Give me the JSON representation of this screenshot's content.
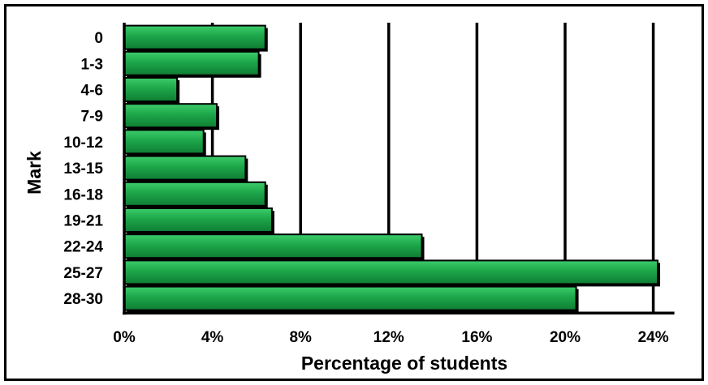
{
  "chart_data": {
    "type": "bar",
    "orientation": "horizontal",
    "categories": [
      "0",
      "1-3",
      "4-6",
      "7-9",
      "10-12",
      "13-15",
      "16-18",
      "19-21",
      "22-24",
      "25-27",
      "28-30"
    ],
    "values": [
      6.4,
      6.1,
      2.4,
      4.2,
      3.6,
      5.5,
      6.4,
      6.7,
      13.5,
      24.2,
      20.5
    ],
    "xlabel": "Percentage of students",
    "ylabel": "Mark",
    "xlim": [
      0,
      24
    ],
    "xticks": [
      0,
      4,
      8,
      12,
      16,
      20,
      24
    ],
    "xtick_labels": [
      "0%",
      "4%",
      "8%",
      "12%",
      "16%",
      "20%",
      "24%"
    ],
    "grid": "vertical",
    "bar_color": "#1DA64A",
    "bar_edge_color": "#000000"
  }
}
